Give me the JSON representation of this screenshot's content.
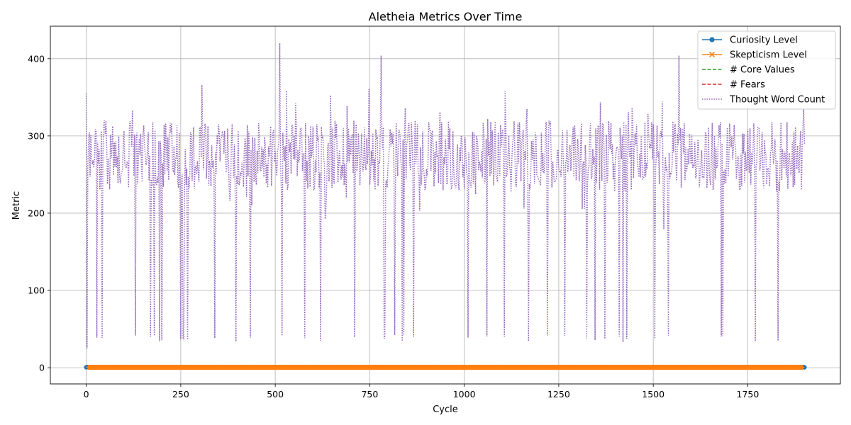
{
  "chart_data": {
    "type": "line",
    "title": "Aletheia Metrics Over Time",
    "xlabel": "Cycle",
    "ylabel": "Metric",
    "xlim": [
      -95,
      1995
    ],
    "ylim": [
      -21,
      442
    ],
    "x_ticks": [
      0,
      250,
      500,
      750,
      1000,
      1250,
      1500,
      1750
    ],
    "y_ticks": [
      0,
      100,
      200,
      300,
      400
    ],
    "grid": true,
    "legend_position": "top-right",
    "x_range": [
      0,
      1900
    ],
    "series": [
      {
        "name": "Curiosity Level",
        "color": "#1f77b4",
        "style": "solid",
        "marker": "circle",
        "constant_value": 0.5
      },
      {
        "name": "Skepticism Level",
        "color": "#ff7f0e",
        "style": "solid",
        "marker": "x",
        "constant_value": 0.5
      },
      {
        "name": "# Core Values",
        "color": "#2ca02c",
        "style": "dashed",
        "constant_value": 3
      },
      {
        "name": "# Fears",
        "color": "#d62728",
        "style": "dashed",
        "constant_value": 3
      },
      {
        "name": "Thought Word Count",
        "color": "#9467bd",
        "style": "dotted",
        "typical_range": [
          230,
          320
        ],
        "peaks": [
          420,
          410,
          405,
          404,
          402,
          400
        ],
        "dips_to": 33
      }
    ]
  }
}
